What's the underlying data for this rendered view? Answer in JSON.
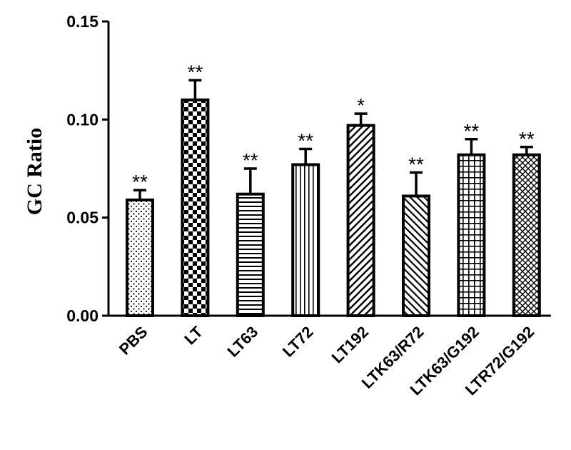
{
  "chart_data": {
    "type": "bar",
    "title": "",
    "xlabel": "",
    "ylabel": "GC Ratio",
    "ylim": [
      0,
      0.15
    ],
    "yticks": [
      "0.00",
      "0.05",
      "0.10",
      "0.15"
    ],
    "categories": [
      "PBS",
      "LT",
      "LT63",
      "LT72",
      "LT192",
      "LTK63/R72",
      "LTK63/G192",
      "LTR72/G192"
    ],
    "values": [
      0.059,
      0.11,
      0.062,
      0.077,
      0.097,
      0.061,
      0.082,
      0.082
    ],
    "errors": [
      0.005,
      0.01,
      0.013,
      0.008,
      0.006,
      0.012,
      0.008,
      0.004
    ],
    "significance": [
      "**",
      "**",
      "**",
      "**",
      "*",
      "**",
      "**",
      "**"
    ],
    "fill_patterns": [
      "dots",
      "checker",
      "horizontal-lines",
      "vertical-lines",
      "diagonal-up",
      "diagonal-down",
      "grid",
      "crosshatch"
    ],
    "colors": {
      "bar_stroke": "#000000",
      "bar_fill": "#ffffff",
      "background": "#ffffff"
    },
    "grid": false,
    "legend": "none"
  }
}
